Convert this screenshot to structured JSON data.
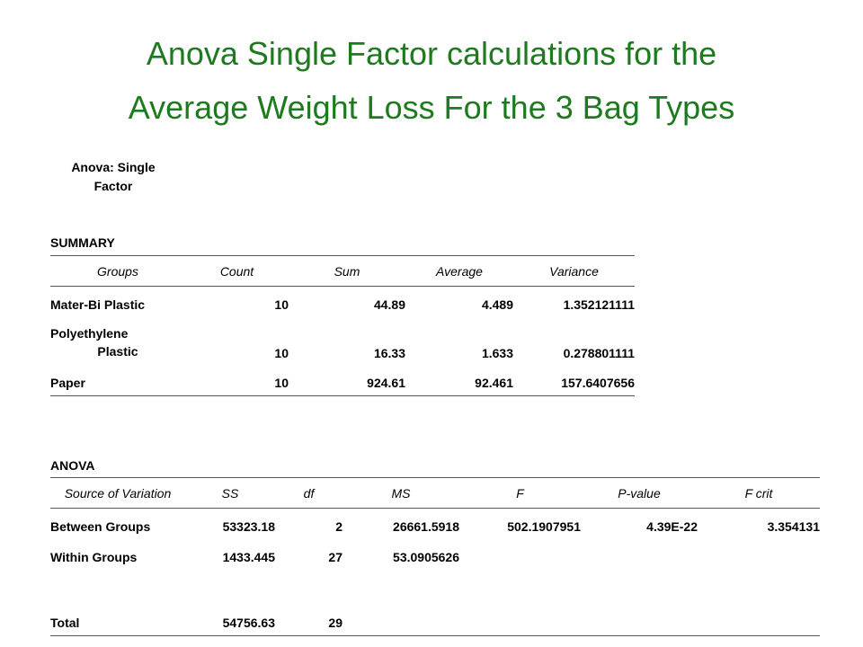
{
  "title": {
    "line1": "Anova Single Factor calculations for the",
    "line2": "Average Weight Loss For the 3 Bag Types",
    "color": "#1e7a1e"
  },
  "caption": {
    "line1": "Anova: Single",
    "line2": "Factor"
  },
  "summary": {
    "label": "SUMMARY",
    "headers": [
      "Groups",
      "Count",
      "Sum",
      "Average",
      "Variance"
    ],
    "rows": [
      {
        "group": "Mater-Bi Plastic",
        "count": "10",
        "sum": "44.89",
        "average": "4.489",
        "variance": "1.352121111"
      },
      {
        "group_line1": "Polyethylene",
        "group_line2": "Plastic",
        "count": "10",
        "sum": "16.33",
        "average": "1.633",
        "variance": "0.278801111"
      },
      {
        "group": "Paper",
        "count": "10",
        "sum": "924.61",
        "average": "92.461",
        "variance": "157.6407656"
      }
    ]
  },
  "anova": {
    "label": "ANOVA",
    "headers": [
      "Source of Variation",
      "SS",
      "df",
      "MS",
      "F",
      "P-value",
      "F crit"
    ],
    "rows": [
      {
        "source": "Between Groups",
        "ss": "53323.18",
        "df": "2",
        "ms": "26661.5918",
        "f": "502.1907951",
        "p": "4.39E-22",
        "fcrit": "3.354131"
      },
      {
        "source": "Within Groups",
        "ss": "1433.445",
        "df": "27",
        "ms": "53.0905626",
        "f": "",
        "p": "",
        "fcrit": ""
      },
      {
        "source": "Total",
        "ss": "54756.63",
        "df": "29",
        "ms": "",
        "f": "",
        "p": "",
        "fcrit": ""
      }
    ]
  }
}
